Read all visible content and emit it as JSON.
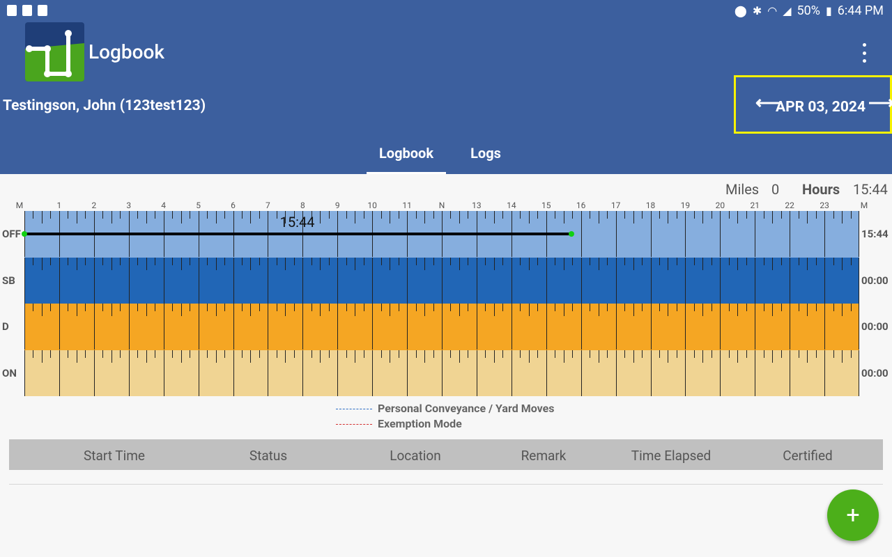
{
  "status_bar": {
    "battery": "50%",
    "time": "6:44 PM"
  },
  "header": {
    "title": "Logbook",
    "driver": "Testingson, John (123test123)",
    "date": "APR 03, 2024",
    "prev_icon": "arrow-left-icon",
    "next_icon": "arrow-right-icon",
    "menu_icon": "more-vert-icon"
  },
  "tabs": [
    {
      "label": "Logbook",
      "active": true
    },
    {
      "label": "Logs",
      "active": false
    }
  ],
  "summary": {
    "miles_label": "Miles",
    "miles_value": "0",
    "hours_label": "Hours",
    "hours_value": "15:44"
  },
  "chart_data": {
    "type": "duty-status-graph",
    "hour_labels": [
      "M",
      "1",
      "2",
      "3",
      "4",
      "5",
      "6",
      "7",
      "8",
      "9",
      "10",
      "11",
      "N",
      "13",
      "14",
      "15",
      "16",
      "17",
      "18",
      "19",
      "20",
      "21",
      "22",
      "23",
      "M"
    ],
    "lanes": [
      {
        "label": "OFF",
        "total": "15:44",
        "color": "#86aede"
      },
      {
        "label": "SB",
        "total": "00:00",
        "color": "#2166b6"
      },
      {
        "label": "D",
        "total": "00:00",
        "color": "#f5a623"
      },
      {
        "label": "ON",
        "total": "00:00",
        "color": "#f0d493"
      }
    ],
    "segments": [
      {
        "status": "OFF",
        "start_hour": 0,
        "end_hour": 15.733,
        "label": "15:44"
      }
    ]
  },
  "legend": [
    {
      "label": "Personal Conveyance / Yard Moves",
      "color": "#2a6cc4"
    },
    {
      "label": "Exemption Mode",
      "color": "#d32f2f"
    }
  ],
  "table": {
    "columns": [
      "Start Time",
      "Status",
      "Location",
      "Remark",
      "Time Elapsed",
      "Certified"
    ]
  },
  "fab": {
    "label": "+"
  }
}
